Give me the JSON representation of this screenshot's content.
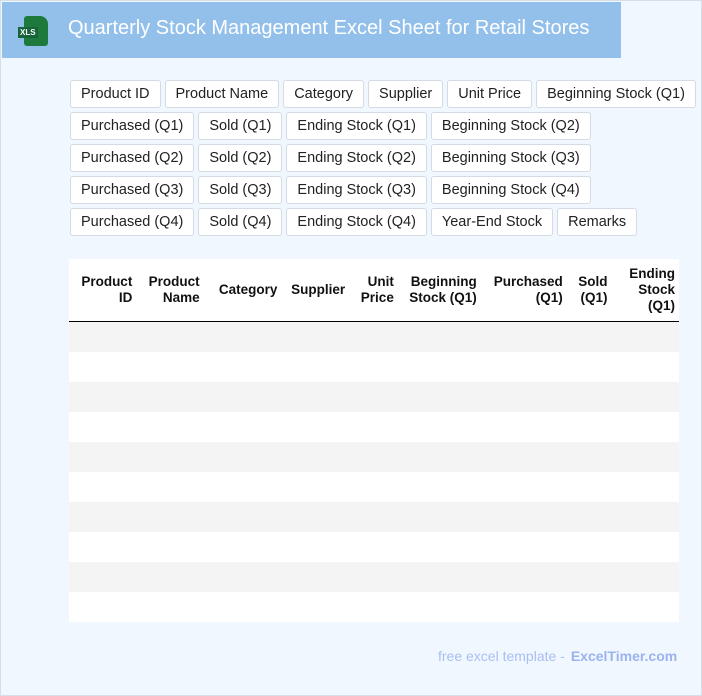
{
  "header": {
    "title": "Quarterly Stock Management Excel Sheet for Retail Stores",
    "icon": "xls-file-icon",
    "icon_label": "XLS"
  },
  "chips": [
    [
      "Product ID",
      "Product Name",
      "Category",
      "Supplier",
      "Unit Price",
      "Beginning Stock (Q1)"
    ],
    [
      "Purchased (Q1)",
      "Sold (Q1)",
      "Ending Stock (Q1)",
      "Beginning Stock (Q2)"
    ],
    [
      "Purchased (Q2)",
      "Sold (Q2)",
      "Ending Stock (Q2)",
      "Beginning Stock (Q3)"
    ],
    [
      "Purchased (Q3)",
      "Sold (Q3)",
      "Ending Stock (Q3)",
      "Beginning Stock (Q4)"
    ],
    [
      "Purchased (Q4)",
      "Sold (Q4)",
      "Ending Stock (Q4)",
      "Year-End Stock",
      "Remarks"
    ]
  ],
  "table": {
    "columns": [
      "Product ID",
      "Product Name",
      "Category",
      "Supplier",
      "Unit Price",
      "Beginning Stock (Q1)",
      "Purchased (Q1)",
      "Sold (Q1)",
      "Ending Stock (Q1)"
    ],
    "row_count": 10
  },
  "footer": {
    "text": "free excel template -",
    "brand": "ExcelTimer.com"
  }
}
